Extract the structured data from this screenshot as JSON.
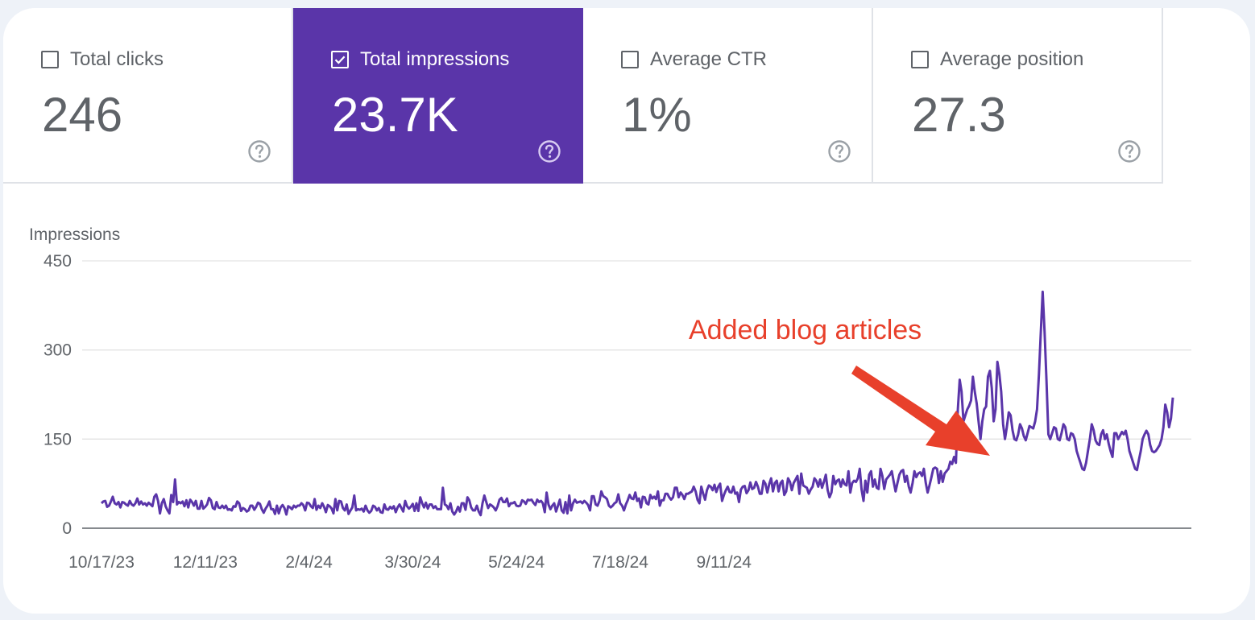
{
  "metrics": [
    {
      "label": "Total clicks",
      "value": "246",
      "checked": false
    },
    {
      "label": "Total impressions",
      "value": "23.7K",
      "checked": true
    },
    {
      "label": "Average CTR",
      "value": "1%",
      "checked": false
    },
    {
      "label": "Average position",
      "value": "27.3",
      "checked": false
    }
  ],
  "help_icon": "question-circle-icon",
  "colors": {
    "selected_metric_bg": "#5a35a9",
    "series_line": "#5a35a9",
    "annotation": "#e8402b",
    "gridline": "#e3e3e3",
    "text_muted": "#5f6368"
  },
  "chart_data": {
    "type": "line",
    "ylabel": "Impressions",
    "ylim": [
      0,
      450
    ],
    "yticks": [
      0,
      150,
      300,
      450
    ],
    "x_tick_labels": [
      "10/17/23",
      "12/11/23",
      "2/4/24",
      "3/30/24",
      "5/24/24",
      "7/18/24",
      "9/11/24"
    ],
    "x_start": "10/17/23",
    "grid": true,
    "series": [
      {
        "values": [
          42,
          45,
          46,
          36,
          38,
          45,
          53,
          42,
          40,
          44,
          35,
          44,
          43,
          40,
          38,
          46,
          40,
          38,
          42,
          50,
          40,
          45,
          40,
          42,
          38,
          43,
          40,
          37,
          53,
          57,
          46,
          25,
          42,
          49,
          37,
          30,
          25,
          56,
          44,
          82,
          40,
          44,
          42,
          45,
          37,
          47,
          35,
          48,
          44,
          38,
          46,
          33,
          33,
          46,
          33,
          36,
          40,
          51,
          47,
          34,
          32,
          44,
          35,
          34,
          38,
          34,
          38,
          31,
          32,
          30,
          37,
          36,
          45,
          42,
          29,
          34,
          32,
          28,
          30,
          38,
          38,
          31,
          36,
          43,
          41,
          32,
          26,
          33,
          38,
          45,
          32,
          32,
          24,
          38,
          25,
          35,
          39,
          34,
          23,
          37,
          35,
          32,
          38,
          35,
          38,
          38,
          42,
          39,
          30,
          43,
          42,
          37,
          34,
          49,
          31,
          38,
          34,
          42,
          36,
          27,
          39,
          37,
          33,
          25,
          49,
          30,
          46,
          45,
          34,
          30,
          40,
          24,
          30,
          35,
          55,
          30,
          32,
          31,
          33,
          28,
          38,
          30,
          26,
          29,
          38,
          36,
          30,
          34,
          27,
          26,
          40,
          32,
          31,
          36,
          33,
          37,
          27,
          35,
          40,
          34,
          28,
          46,
          37,
          33,
          36,
          41,
          29,
          42,
          29,
          52,
          42,
          35,
          43,
          33,
          40,
          40,
          34,
          37,
          32,
          32,
          32,
          68,
          40,
          38,
          32,
          42,
          28,
          23,
          28,
          36,
          28,
          42,
          42,
          31,
          52,
          47,
          35,
          30,
          30,
          38,
          28,
          22,
          42,
          55,
          44,
          34,
          40,
          38,
          35,
          30,
          37,
          48,
          51,
          44,
          44,
          50,
          37,
          42,
          42,
          44,
          38,
          37,
          38,
          47,
          45,
          41,
          48,
          47,
          48,
          43,
          39,
          48,
          44,
          46,
          42,
          27,
          60,
          40,
          32,
          38,
          42,
          28,
          38,
          48,
          30,
          26,
          44,
          25,
          55,
          30,
          42,
          48,
          43,
          44,
          45,
          42,
          46,
          43,
          39,
          30,
          54,
          54,
          40,
          38,
          46,
          62,
          54,
          52,
          49,
          38,
          35,
          38,
          42,
          44,
          57,
          42,
          38,
          30,
          40,
          47,
          56,
          50,
          49,
          60,
          46,
          50,
          35,
          53,
          52,
          42,
          40,
          56,
          50,
          53,
          49,
          62,
          38,
          47,
          47,
          58,
          58,
          52,
          48,
          52,
          68,
          68,
          52,
          60,
          56,
          49,
          58,
          58,
          60,
          62,
          70,
          62,
          48,
          42,
          70,
          58,
          48,
          64,
          72,
          70,
          64,
          73,
          61,
          70,
          75,
          46,
          56,
          64,
          70,
          61,
          60,
          70,
          58,
          60,
          44,
          65,
          70,
          71,
          59,
          64,
          77,
          66,
          68,
          78,
          70,
          58,
          58,
          80,
          75,
          60,
          74,
          84,
          62,
          76,
          80,
          62,
          76,
          80,
          56,
          62,
          84,
          78,
          64,
          76,
          82,
          88,
          58,
          92,
          72,
          70,
          68,
          58,
          65,
          70,
          84,
          80,
          70,
          82,
          68,
          78,
          90,
          64,
          52,
          60,
          88,
          74,
          80,
          82,
          70,
          82,
          74,
          72,
          96,
          60,
          76,
          80,
          78,
          84,
          100,
          65,
          46,
          80,
          60,
          90,
          96,
          70,
          82,
          68,
          66,
          100,
          88,
          66,
          82,
          86,
          90,
          96,
          78,
          62,
          76,
          90,
          96,
          98,
          78,
          88,
          70,
          60,
          76,
          96,
          86,
          92,
          94,
          88,
          100,
          76,
          60,
          72,
          86,
          100,
          102,
          100,
          76,
          96,
          78,
          92,
          96,
          100,
          112,
          108,
          120,
          110,
          200,
          250,
          230,
          180,
          190,
          200,
          206,
          215,
          255,
          230,
          210,
          180,
          150,
          180,
          200,
          205,
          255,
          265,
          236,
          180,
          200,
          280,
          260,
          230,
          175,
          150,
          170,
          195,
          190,
          165,
          150,
          148,
          158,
          175,
          168,
          155,
          148,
          160,
          172,
          170,
          168,
          180,
          200,
          260,
          330,
          398,
          330,
          250,
          158,
          150,
          160,
          170,
          168,
          150,
          148,
          160,
          175,
          170,
          150,
          148,
          160,
          158,
          150,
          130,
          120,
          110,
          100,
          98,
          110,
          130,
          150,
          175,
          165,
          148,
          142,
          140,
          158,
          165,
          150,
          158,
          142,
          130,
          120,
          160,
          160,
          150,
          156,
          162,
          158,
          164,
          150,
          130,
          120,
          110,
          100,
          98,
          115,
          130,
          150,
          158,
          164,
          158,
          140,
          130,
          128,
          130,
          135,
          140,
          150,
          170,
          208,
          195,
          170,
          185,
          220
        ],
        "_note": ""
      }
    ],
    "annotations": [
      {
        "text": "Added blog articles"
      }
    ]
  }
}
